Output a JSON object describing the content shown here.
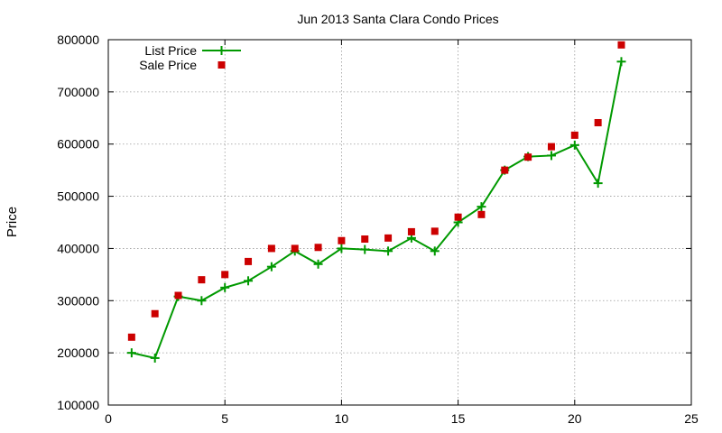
{
  "chart_data": {
    "type": "scatter",
    "title": "Jun 2013 Santa Clara Condo Prices",
    "xlabel": "",
    "ylabel": "Price",
    "xlim": [
      0,
      25
    ],
    "ylim": [
      100000,
      800000
    ],
    "xticks": [
      0,
      5,
      10,
      15,
      20,
      25
    ],
    "yticks": [
      100000,
      200000,
      300000,
      400000,
      500000,
      600000,
      700000,
      800000
    ],
    "grid": true,
    "legend_position": "top-left",
    "x": [
      1,
      2,
      3,
      4,
      5,
      6,
      7,
      8,
      9,
      10,
      11,
      12,
      13,
      14,
      15,
      16,
      17,
      18,
      19,
      20,
      21,
      22
    ],
    "series": [
      {
        "name": "List Price",
        "style": "linespoints",
        "color": "#009900",
        "values": [
          200000,
          190000,
          308000,
          300000,
          325000,
          338000,
          365000,
          395000,
          370000,
          400000,
          398000,
          395000,
          420000,
          395000,
          450000,
          480000,
          550000,
          576000,
          578000,
          598000,
          525000,
          758000
        ]
      },
      {
        "name": "Sale Price",
        "style": "points",
        "color": "#cc0000",
        "values": [
          230000,
          275000,
          310000,
          340000,
          350000,
          375000,
          400000,
          400000,
          402000,
          415000,
          418000,
          420000,
          432000,
          433000,
          460000,
          465000,
          550000,
          575000,
          595000,
          617000,
          641000,
          790000
        ]
      }
    ]
  }
}
